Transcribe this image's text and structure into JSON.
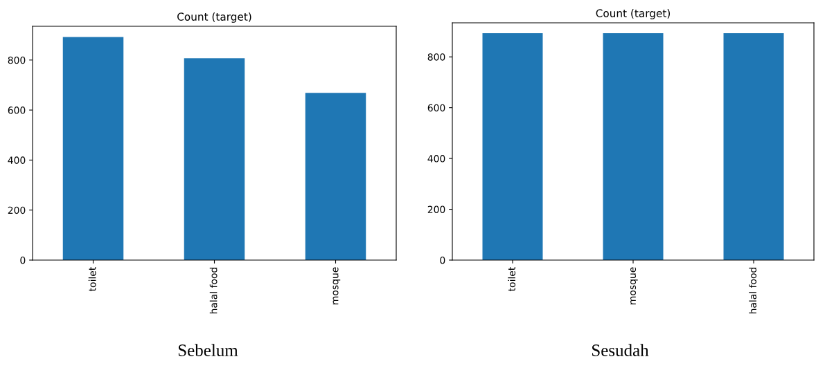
{
  "chart_data": [
    {
      "type": "bar",
      "title": "Count (target)",
      "categories": [
        "toilet",
        "halal food",
        "mosque"
      ],
      "values": [
        892,
        807,
        669
      ],
      "color": "#1f77b4",
      "ylim": [
        0,
        935
      ],
      "yticks": [
        0,
        200,
        400,
        600,
        800
      ],
      "grid": false,
      "legend": false,
      "annotations": [
        "Sebelum"
      ]
    },
    {
      "type": "bar",
      "title": "Count (target)",
      "categories": [
        "toilet",
        "mosque",
        "halal food"
      ],
      "values": [
        893,
        893,
        893
      ],
      "color": "#1f77b4",
      "ylim": [
        0,
        934
      ],
      "yticks": [
        0,
        200,
        400,
        600,
        800
      ],
      "grid": false,
      "legend": false,
      "annotations": [
        "Sesudah"
      ]
    }
  ]
}
